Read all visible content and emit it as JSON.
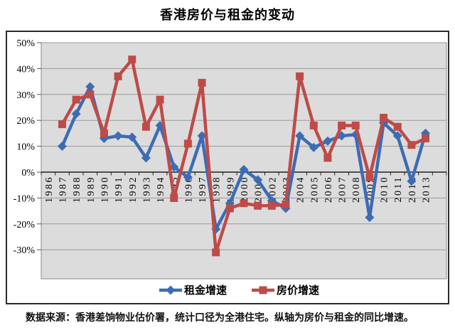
{
  "title": "香港房价与租金的变动",
  "footer": "数据来源：香港差饷物业估价署，统计口径为全港住宅。纵轴为房价与租金的同比增速。",
  "colors": {
    "rent_blue": "#3D6CB4",
    "price_red": "#BE4B48",
    "plot_background": "#DCDCDC",
    "gridline": "#9A9A9A",
    "axis": "#1F1F1F",
    "plot_border": "#8A8A8A",
    "chart_border": "#2B2B2B"
  },
  "chart_data": {
    "type": "line",
    "title": "香港房价与租金的变动",
    "xlabel": "",
    "ylabel": "",
    "ylim": [
      -30,
      50
    ],
    "grid": "horizontal",
    "legend_position": "bottom",
    "ytick_values": [
      50,
      40,
      30,
      20,
      10,
      0,
      -10,
      -20,
      -30
    ],
    "ytick_labels": [
      "50%",
      "40%",
      "30%",
      "20%",
      "10%",
      "0%",
      "-10%",
      "-20%",
      "-30%"
    ],
    "categories": [
      "1986",
      "1987",
      "1988",
      "1989",
      "1990",
      "1991",
      "1992",
      "1993",
      "1994",
      "1995",
      "1996",
      "1997",
      "1998",
      "1999",
      "2000",
      "2001",
      "2002",
      "2003",
      "2004",
      "2005",
      "2006",
      "2007",
      "2008",
      "2009",
      "2010",
      "2011",
      "2012",
      "2013"
    ],
    "series": [
      {
        "key": "rent",
        "name": "租金增速",
        "color": "#3D6CB4",
        "marker": "diamond",
        "values": [
          null,
          10,
          22.5,
          33,
          13,
          14,
          13.5,
          5.5,
          18,
          2,
          -2,
          14,
          -22,
          -12,
          1,
          -3,
          -11,
          -14,
          14,
          9.5,
          12,
          14,
          14.5,
          -17.5,
          19,
          14,
          -3.5,
          15
        ]
      },
      {
        "key": "price",
        "name": "房价增速",
        "color": "#BE4B48",
        "marker": "square",
        "values": [
          null,
          18.5,
          28,
          30,
          15,
          37,
          43.5,
          17.5,
          28,
          -10,
          11,
          34.5,
          -31,
          -14,
          -12,
          -13,
          -13,
          -12.5,
          37,
          18,
          5.5,
          18,
          18,
          -2,
          21,
          17.5,
          10.5,
          13
        ]
      }
    ]
  }
}
